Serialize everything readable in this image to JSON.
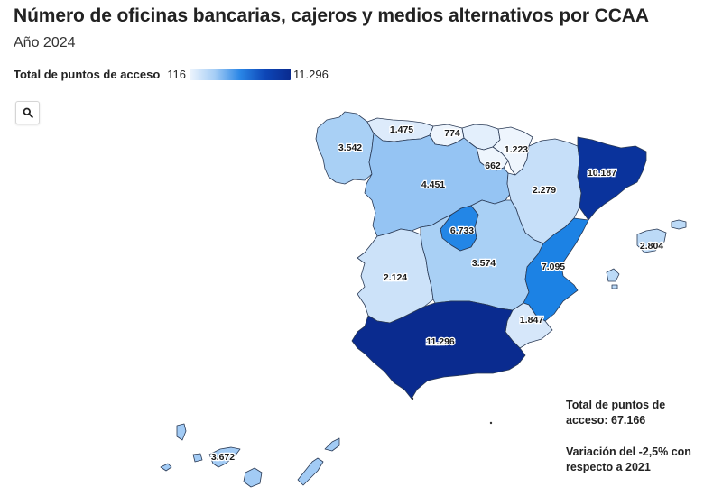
{
  "title": "Número de oficinas bancarias, cajeros y medios alternativos por CCAA",
  "subtitle": "Año 2024",
  "legend": {
    "label": "Total de puntos de acceso",
    "min": "116",
    "max": "11.296",
    "colors": [
      "#eef5fd",
      "#a5cdf5",
      "#2a86e6",
      "#0d46b7",
      "#0a2b8f"
    ]
  },
  "zoom_icon": "search-icon",
  "regions": [
    {
      "id": "galicia",
      "label": "3.542",
      "color": "#a9d0f5"
    },
    {
      "id": "asturias",
      "label": "1.475",
      "color": "#ddebfb"
    },
    {
      "id": "cantabria",
      "label": "774",
      "color": "#eef5fd"
    },
    {
      "id": "pais-vasco",
      "label": "1.223",
      "color": "#e3effc"
    },
    {
      "id": "navarra",
      "label": "662",
      "color": "#eef5fd"
    },
    {
      "id": "rioja",
      "label": "662",
      "color": "#eef5fd"
    },
    {
      "id": "castilla-leon",
      "label": "4.451",
      "color": "#95c4f3"
    },
    {
      "id": "aragon",
      "label": "2.279",
      "color": "#c6dff9"
    },
    {
      "id": "cataluna",
      "label": "10.187",
      "color": "#0a339c"
    },
    {
      "id": "madrid",
      "label": "6.733",
      "color": "#2386e6"
    },
    {
      "id": "extremadura",
      "label": "2.124",
      "color": "#cce2f9"
    },
    {
      "id": "castilla-la-mancha",
      "label": "3.574",
      "color": "#a9d0f5"
    },
    {
      "id": "valencia",
      "label": "7.095",
      "color": "#1c82e4"
    },
    {
      "id": "murcia",
      "label": "1.847",
      "color": "#d6e7fa"
    },
    {
      "id": "andalucia",
      "label": "11.296",
      "color": "#0a2b8f"
    },
    {
      "id": "baleares",
      "label": "2.804",
      "color": "#bcdaf7"
    },
    {
      "id": "canarias",
      "label": "3.672",
      "color": "#a2cbf5"
    }
  ],
  "notes": {
    "total": "Total de puntos de acceso: 67.166",
    "variation": "Variación del -2,5% con respecto a 2021"
  }
}
